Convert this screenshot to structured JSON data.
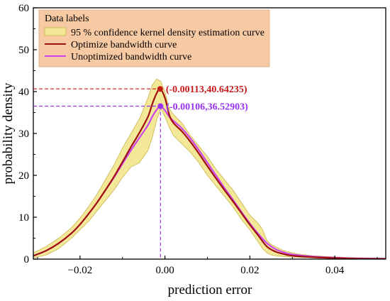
{
  "chart_data": {
    "type": "line",
    "xlabel": "prediction error",
    "ylabel": "probability density",
    "xlim": [
      -0.031,
      0.052
    ],
    "ylim": [
      0,
      60
    ],
    "x_ticks": [
      -0.02,
      0.0,
      0.02,
      0.04
    ],
    "x_tick_labels": [
      "−0.02",
      "0.00",
      "0.02",
      "0.04"
    ],
    "y_ticks": [
      0,
      10,
      20,
      30,
      40,
      50,
      60
    ],
    "y_tick_labels": [
      "0",
      "10",
      "20",
      "30",
      "40",
      "50",
      "60"
    ],
    "grid": false,
    "legend": {
      "title": "Data labels",
      "placement": "top-left",
      "background": "#f8caa4",
      "entries": [
        {
          "label": "95 % confidence kernel density estimation curve",
          "kind": "band",
          "color": "#f2e898"
        },
        {
          "label": "Optimize bandwidth curve",
          "kind": "line",
          "color": "#a01010"
        },
        {
          "label": "Unoptimized bandwidth curve",
          "kind": "line",
          "color": "#cc44ee"
        }
      ]
    },
    "band": {
      "name": "95 % confidence kernel density estimation curve",
      "color": "#f2e898",
      "edge_color": "#c8b44a",
      "x": [
        -0.031,
        -0.028,
        -0.025,
        -0.022,
        -0.02,
        -0.018,
        -0.016,
        -0.014,
        -0.012,
        -0.01,
        -0.008,
        -0.006,
        -0.004,
        -0.003,
        -0.002,
        -0.001,
        0.0,
        0.001,
        0.002,
        0.004,
        0.006,
        0.008,
        0.01,
        0.012,
        0.014,
        0.016,
        0.018,
        0.02,
        0.022,
        0.023,
        0.024,
        0.025,
        0.026,
        0.028,
        0.03,
        0.032,
        0.035,
        0.04,
        0.045,
        0.052
      ],
      "lower": [
        0.3,
        1.0,
        2.5,
        5.0,
        7.0,
        9.0,
        11.5,
        14.0,
        16.5,
        19.5,
        22.0,
        23.0,
        26.0,
        29.0,
        33.0,
        36.0,
        34.0,
        31.5,
        29.5,
        27.5,
        25.5,
        23.0,
        20.0,
        17.5,
        15.0,
        12.5,
        9.5,
        7.0,
        4.0,
        2.5,
        1.5,
        1.0,
        0.8,
        0.6,
        0.5,
        0.4,
        0.3,
        0.2,
        0.1,
        0.05
      ],
      "upper": [
        1.5,
        3.0,
        5.0,
        7.5,
        9.8,
        12.5,
        15.5,
        19.0,
        22.5,
        26.5,
        30.0,
        33.5,
        38.5,
        41.5,
        43.0,
        42.5,
        40.0,
        36.0,
        34.5,
        32.5,
        29.5,
        27.0,
        24.5,
        21.5,
        19.0,
        16.5,
        13.5,
        10.5,
        8.5,
        7.0,
        4.5,
        3.5,
        3.0,
        2.0,
        1.5,
        1.1,
        0.8,
        0.5,
        0.3,
        0.2
      ]
    },
    "series": [
      {
        "name": "Optimize bandwidth curve",
        "color": "#a01010",
        "x": [
          -0.031,
          -0.028,
          -0.025,
          -0.022,
          -0.02,
          -0.018,
          -0.016,
          -0.014,
          -0.012,
          -0.01,
          -0.008,
          -0.006,
          -0.004,
          -0.003,
          -0.002,
          -0.00113,
          0.0,
          0.001,
          0.002,
          0.004,
          0.006,
          0.008,
          0.01,
          0.012,
          0.014,
          0.016,
          0.018,
          0.02,
          0.022,
          0.024,
          0.026,
          0.028,
          0.03,
          0.035,
          0.04,
          0.045,
          0.052
        ],
        "y": [
          0.8,
          2.0,
          3.8,
          6.2,
          8.3,
          10.8,
          13.5,
          16.5,
          19.7,
          23.2,
          26.8,
          30.2,
          34.0,
          37.0,
          39.5,
          40.64235,
          38.5,
          34.5,
          32.5,
          30.5,
          28.0,
          25.2,
          22.2,
          19.3,
          16.5,
          13.8,
          11.0,
          8.2,
          5.6,
          3.0,
          1.8,
          1.2,
          0.8,
          0.45,
          0.25,
          0.12,
          0.05
        ]
      },
      {
        "name": "Unoptimized bandwidth curve",
        "color": "#cc44ee",
        "x": [
          -0.031,
          -0.028,
          -0.025,
          -0.022,
          -0.02,
          -0.018,
          -0.016,
          -0.014,
          -0.012,
          -0.01,
          -0.008,
          -0.006,
          -0.004,
          -0.003,
          -0.002,
          -0.00106,
          0.0,
          0.001,
          0.002,
          0.004,
          0.006,
          0.008,
          0.01,
          0.012,
          0.014,
          0.016,
          0.018,
          0.02,
          0.022,
          0.024,
          0.026,
          0.028,
          0.03,
          0.035,
          0.04,
          0.045,
          0.052
        ],
        "y": [
          0.8,
          2.0,
          3.8,
          6.2,
          8.3,
          10.8,
          13.5,
          16.5,
          19.5,
          22.8,
          26.0,
          29.0,
          32.0,
          34.0,
          35.6,
          36.52903,
          35.5,
          34.0,
          33.0,
          31.2,
          28.8,
          26.0,
          23.0,
          20.0,
          17.0,
          14.2,
          11.3,
          8.5,
          6.0,
          3.8,
          2.4,
          1.6,
          1.1,
          0.6,
          0.35,
          0.2,
          0.1
        ]
      }
    ],
    "annotations": [
      {
        "text": "(-0.00113,40.64235)",
        "x": -0.00113,
        "y": 40.64235,
        "color": "#c41a1a",
        "guide_color": "#c41a1a"
      },
      {
        "text": "(-0.00106,36.52903)",
        "x": -0.00106,
        "y": 36.52903,
        "color": "#9933ee",
        "guide_color": "#9933ee"
      }
    ]
  }
}
